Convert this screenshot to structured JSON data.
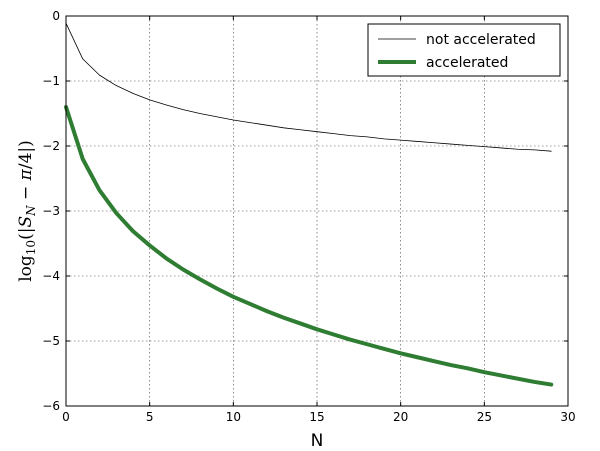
{
  "chart_data": {
    "type": "line",
    "xlabel": "N",
    "ylabel": "log10(|S_N − π/4|)",
    "xlim": [
      0,
      30
    ],
    "ylim": [
      -6,
      0
    ],
    "x_ticks": [
      0,
      5,
      10,
      15,
      20,
      25,
      30
    ],
    "y_ticks": [
      0,
      -1,
      -2,
      -3,
      -4,
      -5,
      -6
    ],
    "x_tick_labels": [
      "0",
      "5",
      "10",
      "15",
      "20",
      "25",
      "30"
    ],
    "y_tick_labels": [
      "0",
      "−1",
      "−2",
      "−3",
      "−4",
      "−5",
      "−6"
    ],
    "grid": true,
    "legend_position": "top-right",
    "x": [
      0,
      1,
      2,
      3,
      4,
      5,
      6,
      7,
      8,
      9,
      10,
      11,
      12,
      13,
      14,
      15,
      16,
      17,
      18,
      19,
      20,
      21,
      22,
      23,
      24,
      25,
      26,
      27,
      28,
      29
    ],
    "series": [
      {
        "name": "not accelerated",
        "color": "#000000",
        "values": [
          -0.11,
          -0.66,
          -0.91,
          -1.07,
          -1.19,
          -1.29,
          -1.37,
          -1.44,
          -1.5,
          -1.55,
          -1.6,
          -1.64,
          -1.68,
          -1.72,
          -1.75,
          -1.78,
          -1.81,
          -1.84,
          -1.86,
          -1.89,
          -1.91,
          -1.93,
          -1.95,
          -1.97,
          -1.99,
          -2.01,
          -2.03,
          -2.05,
          -2.06,
          -2.08
        ]
      },
      {
        "name": "accelerated",
        "color": "#2e7d32",
        "values": [
          -1.4,
          -2.2,
          -2.68,
          -3.03,
          -3.31,
          -3.53,
          -3.73,
          -3.9,
          -4.05,
          -4.19,
          -4.32,
          -4.43,
          -4.54,
          -4.64,
          -4.73,
          -4.82,
          -4.9,
          -4.98,
          -5.05,
          -5.12,
          -5.19,
          -5.25,
          -5.31,
          -5.37,
          -5.42,
          -5.48,
          -5.53,
          -5.58,
          -5.63,
          -5.67
        ]
      }
    ]
  }
}
